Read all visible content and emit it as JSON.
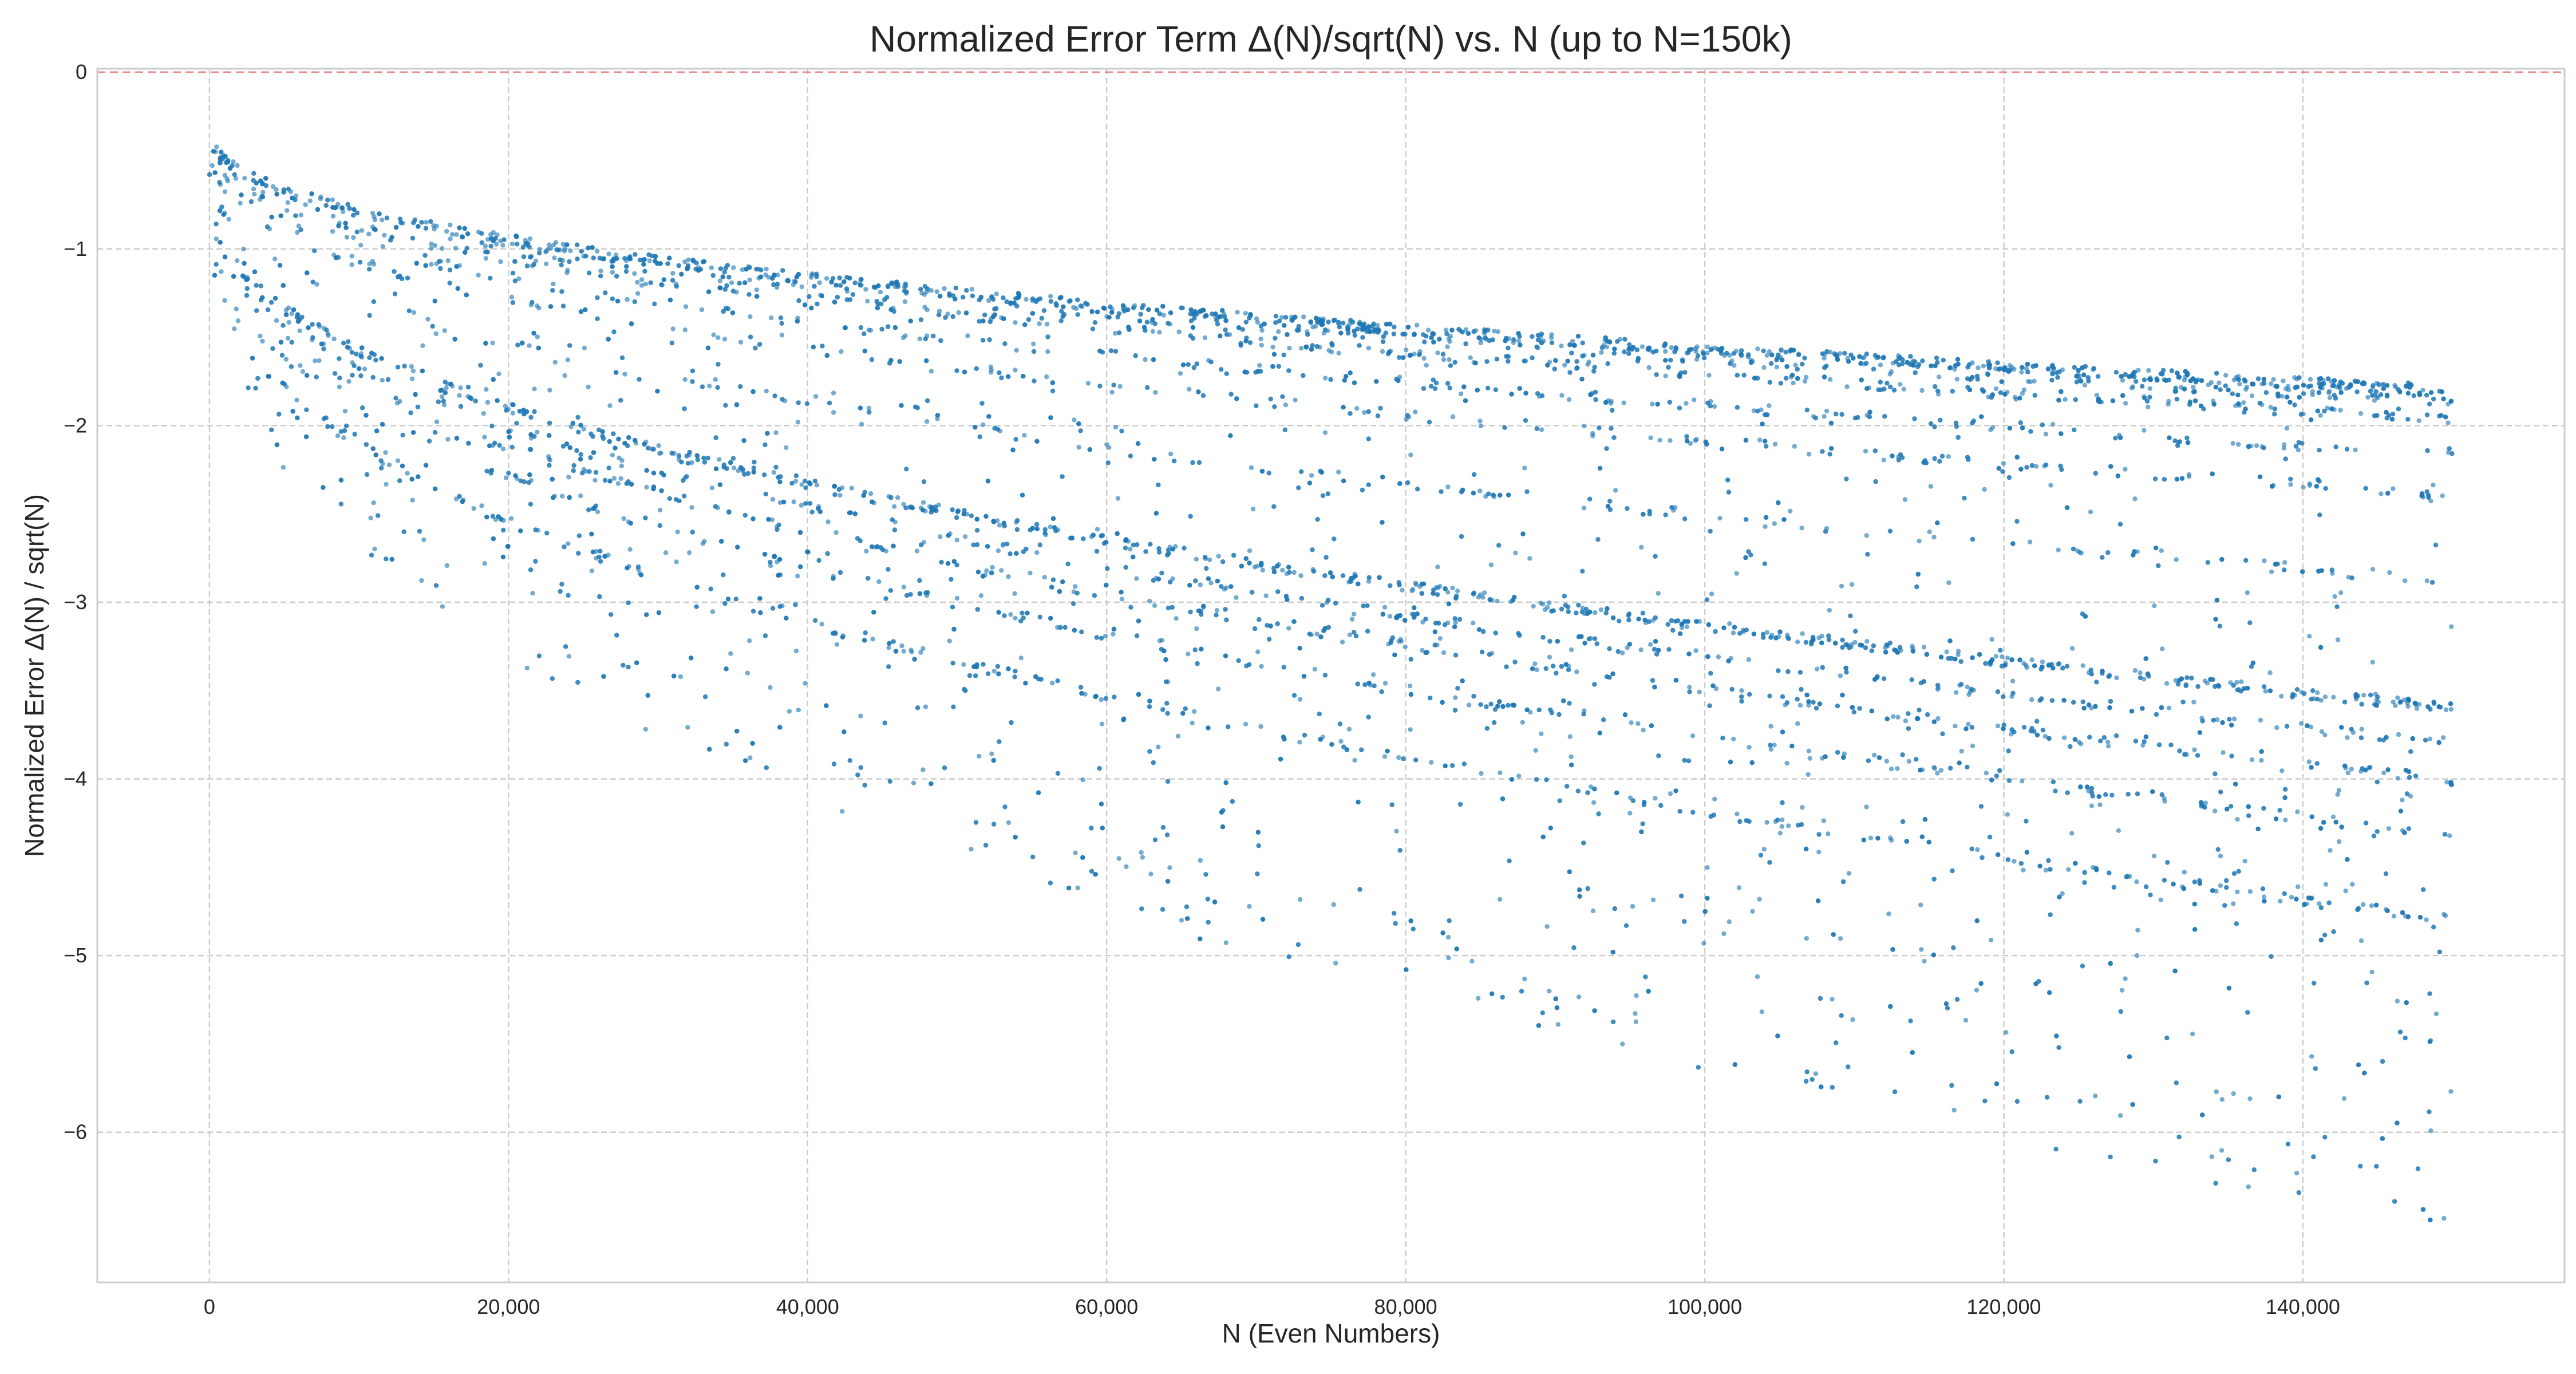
{
  "colors": {
    "points": "#1f77b4",
    "reference_line": "#e6888a",
    "grid": "#cccccc",
    "frame": "#cccccc",
    "background": "#ffffff"
  },
  "chart_data": {
    "type": "scatter",
    "title": "Normalized Error Term Δ(N)/sqrt(N) vs. N (up to N=150k)",
    "xlabel": "N (Even Numbers)",
    "ylabel": "Normalized Error Δ(N) / sqrt(N)",
    "xlim": [
      -7500,
      157500
    ],
    "ylim": [
      -6.85,
      0.02
    ],
    "x_ticks": [
      0,
      20000,
      40000,
      60000,
      80000,
      100000,
      120000,
      140000
    ],
    "x_tick_labels": [
      "0",
      "20,000",
      "40,000",
      "60,000",
      "80,000",
      "100,000",
      "120,000",
      "140,000"
    ],
    "y_ticks": [
      0,
      -1,
      -2,
      -3,
      -4,
      -5,
      -6
    ],
    "y_tick_labels": [
      "0",
      "−1",
      "−2",
      "−3",
      "−4",
      "−5",
      "−6"
    ],
    "grid": true,
    "legend": "none",
    "reference_line": {
      "y": 0,
      "style": "dashed"
    },
    "series": [
      {
        "marker": "dot",
        "x_range": [
          4,
          150000
        ],
        "bands": [
          {
            "y_at_start": -0.31,
            "y_at_end": -1.8,
            "weight": 0.16
          },
          {
            "y_at_start": -0.34,
            "y_at_end": -1.86,
            "weight": 0.06
          },
          {
            "y_at_start": -0.37,
            "y_at_end": -1.96,
            "weight": 0.07
          },
          {
            "y_at_start": -0.41,
            "y_at_end": -2.16,
            "weight": 0.05
          },
          {
            "y_at_start": -0.45,
            "y_at_end": -2.39,
            "weight": 0.04
          },
          {
            "y_at_start": -0.52,
            "y_at_end": -2.88,
            "weight": 0.03
          },
          {
            "y_at_start": -0.62,
            "y_at_end": -3.6,
            "weight": 0.13
          },
          {
            "y_at_start": -0.66,
            "y_at_end": -3.8,
            "weight": 0.05
          },
          {
            "y_at_start": -0.7,
            "y_at_end": -4.01,
            "weight": 0.05
          },
          {
            "y_at_start": -0.76,
            "y_at_end": -4.32,
            "weight": 0.05
          },
          {
            "y_at_start": -0.84,
            "y_at_end": -4.8,
            "weight": 0.05
          }
        ],
        "scatter_envelope": {
          "upper_y_at_end": -1.8,
          "lower_y_at_end": -6.55
        }
      }
    ]
  }
}
